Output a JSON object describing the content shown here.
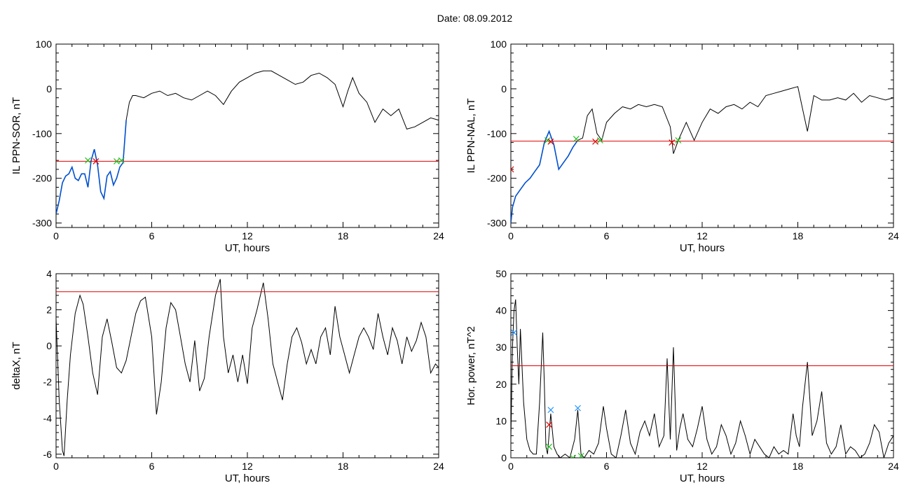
{
  "header": {
    "date_text": "Date:  08.09.2012"
  },
  "colors": {
    "trace": "#000000",
    "highlight": "#0050d0",
    "threshold": "#e00000",
    "marker_green": "#20c020",
    "marker_red": "#e00000",
    "marker_blue": "#1e90ff"
  },
  "chart_data": [
    {
      "type": "line",
      "title": "",
      "xlabel": "UT, hours",
      "ylabel": "IL PPN-SOR, nT",
      "xlim": [
        0,
        24
      ],
      "ylim": [
        -310,
        100
      ],
      "xticks": [
        0,
        6,
        12,
        18,
        24
      ],
      "yticks": [
        100,
        0,
        -100,
        -200,
        -300
      ],
      "grid": false,
      "threshold": -162,
      "series": [
        {
          "x": [
            0,
            0.2,
            0.4,
            0.6,
            0.8,
            1.0,
            1.2,
            1.4,
            1.6,
            1.8,
            2.0,
            2.2,
            2.4,
            2.6,
            2.8,
            3.0,
            3.2,
            3.4,
            3.6,
            3.8,
            4.0,
            4.2,
            4.4,
            4.6,
            4.8,
            5.0,
            5.5,
            6.0,
            6.5,
            7.0,
            7.5,
            8.0,
            8.5,
            9.0,
            9.5,
            10.0,
            10.5,
            11.0,
            11.5,
            12.0,
            12.5,
            13.0,
            13.5,
            14.0,
            14.5,
            15.0,
            15.5,
            16.0,
            16.5,
            17.0,
            17.5,
            18.0,
            18.3,
            18.6,
            19.0,
            19.5,
            20.0,
            20.5,
            21.0,
            21.5,
            22.0,
            22.5,
            23.0,
            23.5,
            24.0
          ],
          "y": [
            -280,
            -250,
            -210,
            -195,
            -190,
            -175,
            -200,
            -205,
            -190,
            -190,
            -220,
            -160,
            -135,
            -170,
            -230,
            -245,
            -195,
            -185,
            -215,
            -200,
            -175,
            -165,
            -70,
            -30,
            -15,
            -15,
            -20,
            -10,
            -5,
            -15,
            -10,
            -20,
            -25,
            -15,
            -5,
            -15,
            -35,
            -5,
            15,
            25,
            35,
            40,
            40,
            30,
            20,
            10,
            15,
            30,
            35,
            25,
            10,
            -40,
            -5,
            25,
            -10,
            -30,
            -75,
            -45,
            -60,
            -45,
            -90,
            -85,
            -75,
            -65,
            -70
          ],
          "highlight_range": [
            0,
            4.5
          ]
        }
      ],
      "markers": [
        {
          "x": 2.0,
          "y": -160,
          "color": "green"
        },
        {
          "x": 2.5,
          "y": -162,
          "color": "red"
        },
        {
          "x": 3.8,
          "y": -162,
          "color": "green"
        },
        {
          "x": 4.1,
          "y": -160,
          "color": "green"
        }
      ]
    },
    {
      "type": "line",
      "title": "",
      "xlabel": "UT, hours",
      "ylabel": "IL PPN-NAL, nT",
      "xlim": [
        0,
        24
      ],
      "ylim": [
        -310,
        100
      ],
      "xticks": [
        0,
        6,
        12,
        18,
        24
      ],
      "yticks": [
        100,
        0,
        -100,
        -200,
        -300
      ],
      "grid": false,
      "threshold": -117,
      "series": [
        {
          "x": [
            0,
            0.1,
            0.3,
            0.6,
            0.9,
            1.2,
            1.5,
            1.8,
            2.1,
            2.4,
            2.7,
            3.0,
            3.3,
            3.6,
            3.9,
            4.2,
            4.5,
            4.8,
            5.1,
            5.4,
            5.7,
            6.0,
            6.5,
            7.0,
            7.5,
            8.0,
            8.5,
            9.0,
            9.5,
            10.0,
            10.2,
            10.5,
            11.0,
            11.5,
            12.0,
            12.5,
            13.0,
            13.5,
            14.0,
            14.5,
            15.0,
            15.5,
            16.0,
            16.5,
            17.0,
            17.5,
            18.0,
            18.3,
            18.6,
            19.0,
            19.5,
            20.0,
            20.5,
            21.0,
            21.5,
            22.0,
            22.5,
            23.0,
            23.5,
            24.0
          ],
          "y": [
            -300,
            -265,
            -240,
            -225,
            -210,
            -200,
            -185,
            -170,
            -120,
            -95,
            -125,
            -180,
            -165,
            -150,
            -130,
            -115,
            -110,
            -60,
            -45,
            -100,
            -115,
            -75,
            -55,
            -40,
            -45,
            -35,
            -40,
            -35,
            -40,
            -85,
            -145,
            -115,
            -75,
            -115,
            -75,
            -45,
            -55,
            -40,
            -35,
            -45,
            -30,
            -40,
            -15,
            -10,
            -5,
            0,
            5,
            -45,
            -95,
            -15,
            -25,
            -25,
            -20,
            -25,
            -10,
            -30,
            -15,
            -20,
            -25,
            -20
          ],
          "highlight_range": [
            0,
            4.3
          ]
        }
      ],
      "markers": [
        {
          "x": 0.0,
          "y": -180,
          "color": "red"
        },
        {
          "x": 2.3,
          "y": -115,
          "color": "green"
        },
        {
          "x": 2.5,
          "y": -118,
          "color": "red"
        },
        {
          "x": 4.1,
          "y": -112,
          "color": "green"
        },
        {
          "x": 5.3,
          "y": -118,
          "color": "red"
        },
        {
          "x": 5.6,
          "y": -115,
          "color": "green"
        },
        {
          "x": 10.1,
          "y": -120,
          "color": "red"
        },
        {
          "x": 10.5,
          "y": -115,
          "color": "green"
        }
      ]
    },
    {
      "type": "line",
      "title": "",
      "xlabel": "UT, hours",
      "ylabel": "deltaX, nT",
      "xlim": [
        0,
        24
      ],
      "ylim": [
        -6.2,
        4
      ],
      "xticks": [
        0,
        6,
        12,
        18,
        24
      ],
      "yticks": [
        4,
        2,
        0,
        -2,
        -4,
        -6
      ],
      "grid": false,
      "threshold": 3,
      "series": [
        {
          "x": [
            0,
            0.2,
            0.4,
            0.5,
            0.7,
            0.9,
            1.2,
            1.5,
            1.7,
            2.0,
            2.3,
            2.6,
            2.9,
            3.2,
            3.5,
            3.8,
            4.1,
            4.4,
            4.7,
            5.0,
            5.3,
            5.6,
            6.0,
            6.3,
            6.6,
            6.9,
            7.2,
            7.5,
            7.8,
            8.1,
            8.4,
            8.7,
            9.0,
            9.3,
            9.6,
            10.0,
            10.3,
            10.5,
            10.8,
            11.1,
            11.4,
            11.7,
            12.0,
            12.3,
            12.6,
            13.0,
            13.3,
            13.6,
            13.9,
            14.2,
            14.5,
            14.8,
            15.1,
            15.4,
            15.7,
            16.0,
            16.3,
            16.6,
            16.9,
            17.2,
            17.5,
            17.8,
            18.1,
            18.4,
            18.7,
            19.0,
            19.3,
            19.6,
            19.9,
            20.2,
            20.5,
            20.8,
            21.1,
            21.4,
            21.7,
            22.0,
            22.3,
            22.6,
            22.9,
            23.2,
            23.5,
            23.8,
            24.0
          ],
          "y": [
            1.5,
            -3,
            -5.8,
            -6.1,
            -3,
            -0.5,
            1.8,
            2.8,
            2.3,
            0.5,
            -1.5,
            -2.7,
            0.5,
            1.5,
            0.2,
            -1.2,
            -1.5,
            -0.8,
            0.5,
            1.8,
            2.5,
            2.7,
            0.5,
            -3.8,
            -2,
            1,
            2.4,
            2,
            0.5,
            -1,
            -2,
            0.3,
            -2.5,
            -1.8,
            0.5,
            2.8,
            3.7,
            0.5,
            -1.5,
            -0.5,
            -2,
            -0.5,
            -2.1,
            1,
            2,
            3.5,
            1.5,
            -1,
            -2,
            -3,
            -1,
            0.5,
            1,
            0.2,
            -1,
            -0.2,
            -1,
            0.5,
            1,
            -0.5,
            2.2,
            0.5,
            -0.5,
            -1.5,
            -0.5,
            0.5,
            1,
            0.5,
            -0.2,
            1.8,
            0.5,
            -0.5,
            1,
            0.3,
            -1,
            0.5,
            -0.3,
            0.3,
            1.3,
            0.5,
            -1.5,
            -1,
            -1.2
          ]
        }
      ]
    },
    {
      "type": "line",
      "title": "",
      "xlabel": "UT, hours",
      "ylabel": "Hor. power, nT^2",
      "xlim": [
        0,
        24
      ],
      "ylim": [
        0,
        50
      ],
      "xticks": [
        0,
        6,
        12,
        18,
        24
      ],
      "yticks": [
        50,
        40,
        30,
        20,
        10,
        0
      ],
      "grid": false,
      "threshold": 25,
      "series": [
        {
          "x": [
            0,
            0.1,
            0.2,
            0.3,
            0.4,
            0.5,
            0.6,
            0.7,
            0.8,
            1.0,
            1.2,
            1.4,
            1.6,
            1.8,
            2.0,
            2.1,
            2.2,
            2.3,
            2.5,
            2.7,
            2.9,
            3.1,
            3.4,
            3.7,
            4.0,
            4.2,
            4.4,
            4.6,
            4.9,
            5.2,
            5.5,
            5.8,
            6.0,
            6.3,
            6.6,
            6.9,
            7.2,
            7.5,
            7.8,
            8.1,
            8.4,
            8.7,
            9.0,
            9.3,
            9.6,
            9.8,
            10.0,
            10.2,
            10.4,
            10.6,
            10.8,
            11.1,
            11.4,
            11.7,
            12.0,
            12.3,
            12.6,
            12.9,
            13.2,
            13.5,
            13.8,
            14.1,
            14.4,
            14.7,
            15.0,
            15.3,
            15.6,
            15.9,
            16.2,
            16.5,
            16.8,
            17.1,
            17.4,
            17.7,
            17.9,
            18.1,
            18.3,
            18.6,
            18.9,
            19.2,
            19.5,
            19.8,
            20.1,
            20.4,
            20.7,
            21.0,
            21.3,
            21.6,
            21.9,
            22.2,
            22.5,
            22.8,
            23.1,
            23.4,
            23.7,
            24.0
          ],
          "y": [
            5,
            30,
            40,
            43,
            30,
            20,
            35,
            25,
            15,
            5,
            2,
            1,
            1,
            15,
            34,
            20,
            3,
            1,
            12,
            3,
            1,
            0,
            1,
            0,
            5,
            13,
            1,
            0,
            2,
            1,
            4,
            14,
            8,
            1,
            0,
            6,
            13,
            4,
            1,
            7,
            10,
            6,
            12,
            3,
            6,
            27,
            5,
            30,
            2,
            8,
            12,
            5,
            3,
            8,
            14,
            5,
            1,
            3,
            9,
            6,
            1,
            4,
            10,
            6,
            1,
            5,
            3,
            1,
            0,
            3,
            1,
            2,
            1,
            12,
            6,
            3,
            14,
            26,
            6,
            10,
            18,
            4,
            1,
            3,
            9,
            1,
            3,
            2,
            0,
            1,
            4,
            9,
            7,
            0,
            4,
            6
          ]
        }
      ],
      "markers": [
        {
          "x": 0.2,
          "y": 34,
          "color": "blue"
        },
        {
          "x": 2.4,
          "y": 9,
          "color": "red"
        },
        {
          "x": 2.5,
          "y": 13,
          "color": "blue"
        },
        {
          "x": 2.4,
          "y": 3,
          "color": "green"
        },
        {
          "x": 4.2,
          "y": 13.5,
          "color": "blue"
        },
        {
          "x": 3.9,
          "y": 0,
          "color": "green"
        },
        {
          "x": 4.4,
          "y": 0.5,
          "color": "green"
        }
      ]
    }
  ]
}
